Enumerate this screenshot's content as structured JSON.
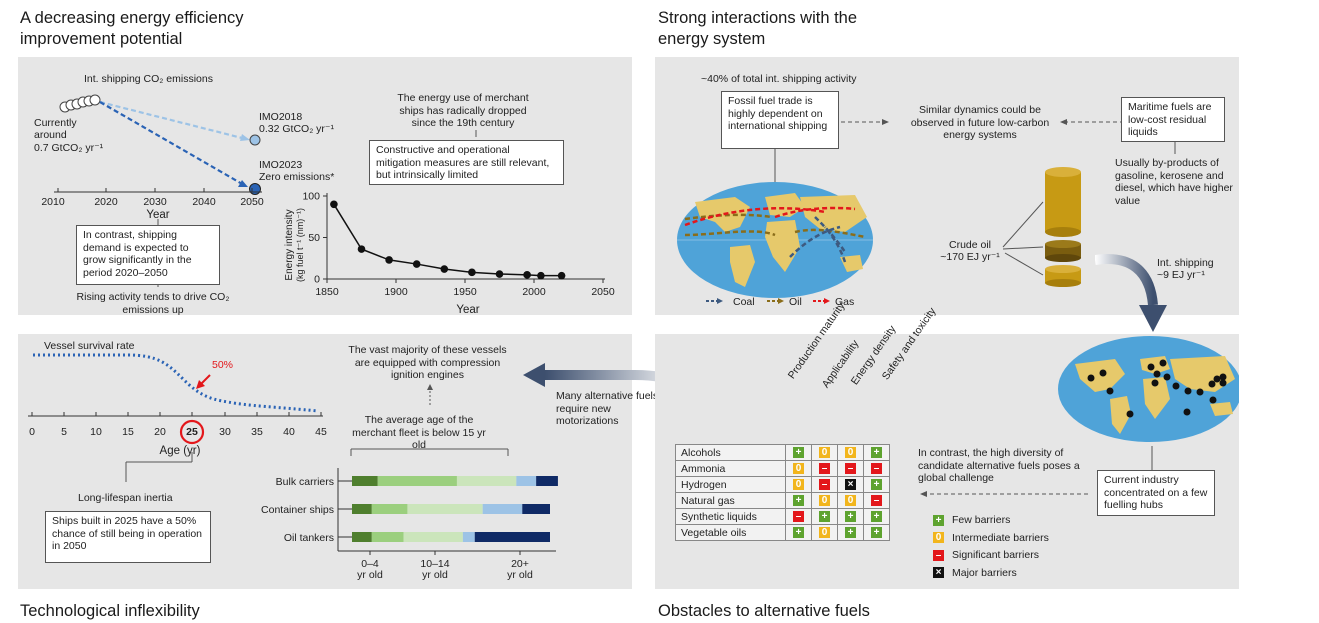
{
  "sections": {
    "efficiency_title": "A decreasing energy efficiency improvement potential",
    "energy_title": "Strong interactions with the energy system",
    "inflexibility_title": "Technological inflexibility",
    "obstacles_title": "Obstacles to alternative fuels"
  },
  "panel1": {
    "emissions_label": "Int. shipping CO₂ emissions",
    "currently": "Currently",
    "around": "around",
    "current_value": "0.7 GtCO₂ yr⁻¹",
    "imo2018_label": "IMO2018",
    "imo2018_value": "0.32 GtCO₂ yr⁻¹",
    "imo2023_label": "IMO2023",
    "imo2023_value": "Zero emissions*",
    "year_ticks": [
      "2010",
      "2020",
      "2030",
      "2040",
      "2050"
    ],
    "year_label": "Year",
    "demand_box": "In contrast, shipping demand is expected to grow significantly in the period 2020–2050",
    "rising_text": "Rising activity tends to drive CO₂ emissions up",
    "energy_use_text": "The energy use of merchant ships has radically dropped since the 19th century",
    "mitigation_box": "Constructive and operational mitigation measures are still relevant, but intrinsically limited"
  },
  "chart_data": {
    "type": "line",
    "ylabel_line1": "Energy intensity",
    "ylabel_line2": "(kg fuel t⁻¹ (nm)⁻¹)",
    "xlabel": "Year",
    "xlim": [
      1850,
      2050
    ],
    "ylim": [
      0,
      100
    ],
    "x_ticks": [
      "1850",
      "1900",
      "1950",
      "2000",
      "2050"
    ],
    "y_ticks": [
      "0",
      "50",
      "100"
    ],
    "x": [
      1855,
      1875,
      1895,
      1915,
      1935,
      1955,
      1975,
      1995,
      2005,
      2020
    ],
    "y": [
      90,
      36,
      23,
      18,
      12,
      8,
      6,
      5,
      4,
      4
    ]
  },
  "panel2": {
    "activity_text": "~40% of total int. shipping activity",
    "fossil_box": "Fossil fuel trade is highly dependent on international shipping",
    "similar_text": "Similar dynamics could be observed in future low-carbon energy systems",
    "maritime_box": "Maritime fuels are low-cost residual liquids",
    "byproducts_text": "Usually by-products of gasoline, kerosene and diesel, which have higher value",
    "crude_label": "Crude oil",
    "crude_value": "~170 EJ yr⁻¹",
    "shipping_label": "Int. shipping",
    "shipping_value": "~9 EJ yr⁻¹",
    "legend": [
      {
        "label": "Coal",
        "color": "#3d5a80"
      },
      {
        "label": "Oil",
        "color": "#8a6d1a"
      },
      {
        "label": "Gas",
        "color": "#e3171b"
      }
    ]
  },
  "panel3": {
    "survival_label": "Vessel survival rate",
    "fifty_label": "50%",
    "age_ticks": [
      "0",
      "5",
      "10",
      "15",
      "20",
      "25",
      "30",
      "35",
      "40",
      "45"
    ],
    "age_label": "Age (yr)",
    "inertia_label": "Long-lifespan inertia",
    "ships_box": "Ships built in 2025 have a 50% chance of still being in operation in 2050",
    "majority_text": "The vast majority of these vessels are equipped with compression ignition engines",
    "average_text": "The average age of the merchant fleet is below 15 yr old",
    "alt_fuels_text": "Many alternative fuels require new motorizations",
    "fleet": [
      {
        "name": "Bulk carriers",
        "segments": [
          0.13,
          0.4,
          0.3,
          0.1,
          0.11
        ]
      },
      {
        "name": "Container ships",
        "segments": [
          0.1,
          0.18,
          0.38,
          0.2,
          0.14
        ]
      },
      {
        "name": "Oil tankers",
        "segments": [
          0.1,
          0.16,
          0.3,
          0.06,
          0.38
        ]
      }
    ],
    "fleet_colors": [
      "#4f7f2e",
      "#9bcf7e",
      "#cbe5bb",
      "#9dc3e6",
      "#0f2a66"
    ],
    "age_groups": [
      {
        "top": "0–4",
        "bottom": "yr old"
      },
      {
        "top": "10–14",
        "bottom": "yr old"
      },
      {
        "top": "20+",
        "bottom": "yr old"
      }
    ]
  },
  "panel4": {
    "columns": [
      "Production maturity",
      "Applicability",
      "Energy density",
      "Safety and toxicity"
    ],
    "fuels": [
      {
        "name": "Alcohols",
        "ratings": [
          "few",
          "inter",
          "inter",
          "few"
        ]
      },
      {
        "name": "Ammonia",
        "ratings": [
          "inter",
          "sig",
          "sig",
          "sig"
        ]
      },
      {
        "name": "Hydrogen",
        "ratings": [
          "inter",
          "sig",
          "major",
          "few"
        ]
      },
      {
        "name": "Natural gas",
        "ratings": [
          "few",
          "inter",
          "inter",
          "sig"
        ]
      },
      {
        "name": "Synthetic liquids",
        "ratings": [
          "sig",
          "few",
          "few",
          "few"
        ]
      },
      {
        "name": "Vegetable oils",
        "ratings": [
          "few",
          "inter",
          "few",
          "few"
        ]
      }
    ],
    "symbols": {
      "few": "+",
      "inter": "0",
      "sig": "–",
      "major": "×"
    },
    "diversity_text": "In contrast, the high diversity of candidate alternative fuels poses a global challenge",
    "hubs_box": "Current industry concentrated on a few fuelling hubs",
    "legend": [
      {
        "key": "few",
        "label": "Few barriers"
      },
      {
        "key": "inter",
        "label": "Intermediate barriers"
      },
      {
        "key": "sig",
        "label": "Significant barriers"
      },
      {
        "key": "major",
        "label": "Major barriers"
      }
    ]
  }
}
